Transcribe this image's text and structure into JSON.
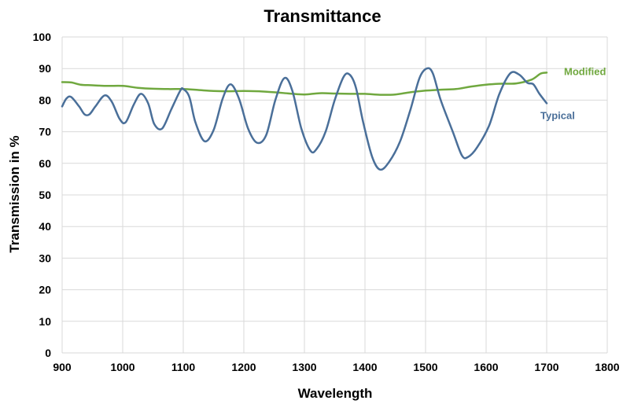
{
  "chart_data": {
    "type": "line",
    "title": "Transmittance",
    "xlabel": "Wavelength",
    "ylabel": "Transmission in %",
    "xlim": [
      900,
      1800
    ],
    "ylim": [
      0,
      100
    ],
    "xticks": [
      "900",
      "1000",
      "1100",
      "1200",
      "1300",
      "1400",
      "1500",
      "1600",
      "1700",
      "1800"
    ],
    "yticks": [
      "0",
      "10",
      "20",
      "30",
      "40",
      "50",
      "60",
      "70",
      "80",
      "90",
      "100"
    ],
    "grid": true,
    "series": [
      {
        "name": "Modified",
        "color": "#70a83f",
        "x": [
          900,
          915,
          930,
          950,
          975,
          1000,
          1025,
          1050,
          1075,
          1100,
          1125,
          1150,
          1175,
          1200,
          1225,
          1250,
          1275,
          1300,
          1325,
          1350,
          1375,
          1400,
          1425,
          1450,
          1475,
          1500,
          1525,
          1550,
          1575,
          1600,
          1625,
          1650,
          1675,
          1690,
          1700
        ],
        "y": [
          85.7,
          85.6,
          84.9,
          84.7,
          84.5,
          84.5,
          83.9,
          83.6,
          83.5,
          83.5,
          83.2,
          82.9,
          82.8,
          82.9,
          82.8,
          82.5,
          82.1,
          81.8,
          82.2,
          82.1,
          82.0,
          82.0,
          81.7,
          81.8,
          82.5,
          83.0,
          83.3,
          83.5,
          84.3,
          84.9,
          85.2,
          85.3,
          86.5,
          88.4,
          88.7
        ]
      },
      {
        "name": "Typical",
        "color": "#4a6f99",
        "x": [
          900,
          907,
          915,
          928,
          937,
          945,
          955,
          970,
          982,
          995,
          1005,
          1018,
          1030,
          1042,
          1052,
          1065,
          1080,
          1095,
          1100,
          1110,
          1120,
          1135,
          1150,
          1165,
          1178,
          1192,
          1207,
          1222,
          1237,
          1252,
          1267,
          1280,
          1295,
          1310,
          1320,
          1335,
          1350,
          1365,
          1375,
          1385,
          1397,
          1412,
          1425,
          1440,
          1458,
          1475,
          1490,
          1502,
          1512,
          1525,
          1545,
          1560,
          1570,
          1585,
          1605,
          1622,
          1640,
          1655,
          1668,
          1678,
          1688,
          1700
        ],
        "y": [
          78,
          80.5,
          81,
          78,
          75.5,
          75.5,
          78,
          81.5,
          79.5,
          74,
          73,
          78.5,
          82,
          79,
          72.5,
          71,
          77,
          83,
          83.5,
          81,
          73,
          67,
          70.5,
          80.5,
          85,
          80.5,
          71,
          66.5,
          69,
          80,
          87,
          83,
          71,
          64,
          64.5,
          70,
          80,
          87.5,
          88,
          84,
          73,
          62,
          58,
          60.5,
          67,
          77,
          87,
          90,
          88.5,
          80,
          70,
          62.5,
          62,
          65,
          72,
          82,
          88.5,
          88,
          85.5,
          85,
          82,
          79
        ]
      }
    ]
  }
}
